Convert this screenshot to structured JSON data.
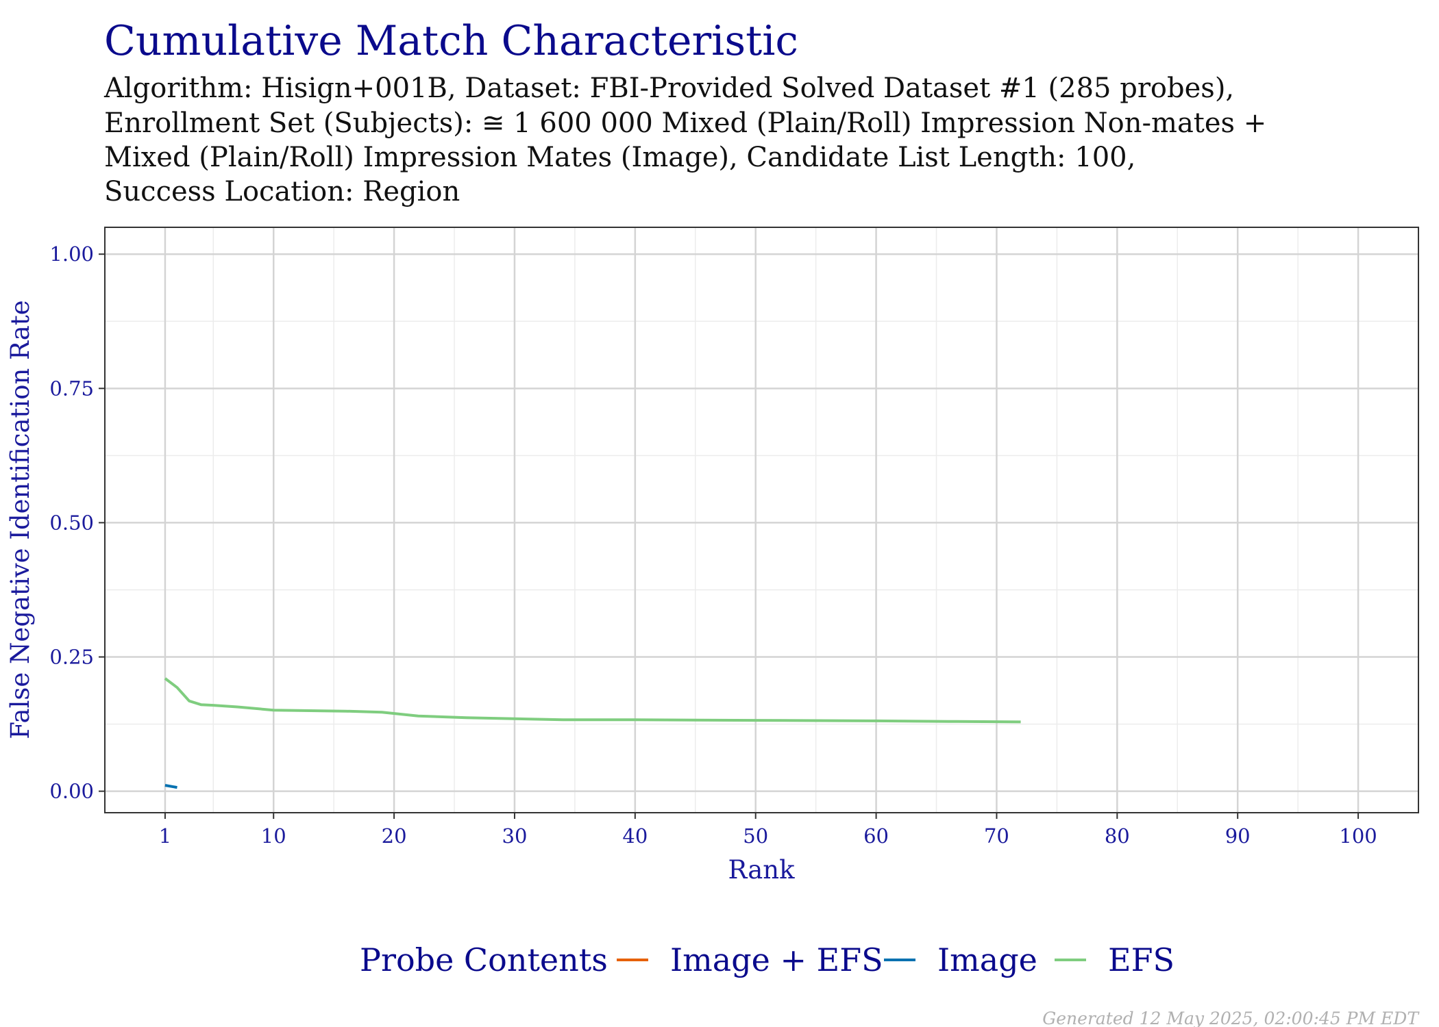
{
  "chart_data": {
    "type": "line",
    "title": "Cumulative Match Characteristic",
    "subtitle_lines": [
      "Algorithm: Hisign+001B, Dataset: FBI-Provided Solved Dataset #1 (285 probes),",
      "Enrollment Set (Subjects): ≅ 1 600 000 Mixed (Plain/Roll) Impression Non-mates +",
      "Mixed (Plain/Roll) Impression Mates (Image), Candidate List Length: 100,",
      "Success Location: Region"
    ],
    "xlabel": "Rank",
    "ylabel": "False Negative Identification Rate",
    "xlim": [
      -4,
      105
    ],
    "ylim": [
      -0.04,
      1.05
    ],
    "x_ticks": [
      1,
      10,
      20,
      30,
      40,
      50,
      60,
      70,
      80,
      90,
      100
    ],
    "x_tick_labels": [
      "1",
      "10",
      "20",
      "30",
      "40",
      "50",
      "60",
      "70",
      "80",
      "90",
      "100"
    ],
    "x_minor_ticks": [
      5,
      15,
      25,
      35,
      45,
      55,
      65,
      75,
      85,
      95
    ],
    "y_ticks": [
      0,
      0.25,
      0.5,
      0.75,
      1.0
    ],
    "y_tick_labels": [
      "0.00",
      "0.25",
      "0.50",
      "0.75",
      "1.00"
    ],
    "y_minor_ticks": [
      0.125,
      0.375,
      0.625,
      0.875
    ],
    "grid": true,
    "legend": {
      "title": "Probe Contents",
      "position": "bottom"
    },
    "series": [
      {
        "name": "Image + EFS",
        "color": "#e66101",
        "x": [],
        "y": []
      },
      {
        "name": "Image",
        "color": "#0571b0",
        "x": [
          1,
          2
        ],
        "y": [
          0.011,
          0.007
        ]
      },
      {
        "name": "EFS",
        "color": "#7fcd7f",
        "x": [
          1,
          2,
          3,
          4,
          5,
          7,
          10,
          13,
          16,
          19,
          22,
          26,
          30,
          34,
          40,
          50,
          60,
          66,
          72
        ],
        "y": [
          0.21,
          0.193,
          0.168,
          0.161,
          0.16,
          0.157,
          0.151,
          0.15,
          0.149,
          0.147,
          0.14,
          0.137,
          0.135,
          0.133,
          0.133,
          0.132,
          0.131,
          0.13,
          0.129
        ]
      }
    ]
  },
  "footer": "Generated 12 May 2025, 02:00:45 PM EDT"
}
